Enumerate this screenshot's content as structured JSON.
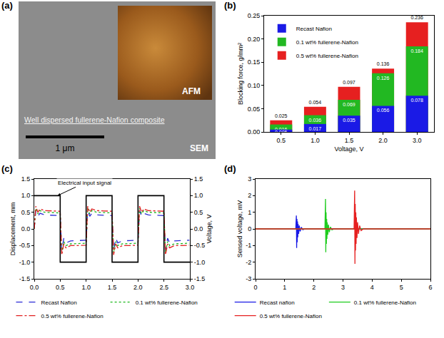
{
  "chart_data": [
    {
      "type": "image",
      "panel": "(a)",
      "annotations": [
        "AFM",
        "Well dispersed fullerene-Nafion composite",
        "1 μm",
        "SEM"
      ]
    },
    {
      "type": "bar",
      "panel": "(b)",
      "x_label": "Voltage, V",
      "y_label": "Blocking force, g/mm²",
      "categories": [
        "0.5",
        "1.0",
        "1.5",
        "2.0",
        "3.0"
      ],
      "series": [
        {
          "name": "Recast Nafion",
          "color": "#1a1ae6",
          "values": [
            0.005,
            0.017,
            0.035,
            0.056,
            0.078
          ]
        },
        {
          "name": "0.1 wt% fullerene-Nafion",
          "color": "#22b822",
          "values": [
            0.016,
            0.036,
            0.069,
            0.126,
            0.184
          ]
        },
        {
          "name": "0.5 wt% fullerene-Nafion",
          "color": "#e62020",
          "values": [
            0.025,
            0.054,
            0.097,
            0.136,
            0.236
          ]
        }
      ],
      "ylim": [
        0,
        0.25
      ],
      "yticks": [
        {
          "value": 0,
          "label": "0.00"
        },
        {
          "value": 0.05,
          "label": "0.05"
        },
        {
          "value": 0.1,
          "label": "0.10"
        },
        {
          "value": 0.15,
          "label": "0.15"
        },
        {
          "value": 0.2,
          "label": "0.20"
        },
        {
          "value": 0.25,
          "label": "0.25"
        }
      ],
      "data_labels": true,
      "legend": "top left",
      "grid": false
    },
    {
      "type": "line",
      "panel": "(c)",
      "y_label": "Displacement, mm",
      "y2_label": "Voltage, V",
      "annotations": [
        "Electrical input signal"
      ],
      "xlim": [
        0,
        3
      ],
      "xticks": [
        {
          "value": 0,
          "label": "0.0"
        },
        {
          "value": 0.5,
          "label": "0.5"
        },
        {
          "value": 1,
          "label": "1.0"
        },
        {
          "value": 1.5,
          "label": "1.5"
        },
        {
          "value": 2,
          "label": "2.0"
        },
        {
          "value": 2.5,
          "label": "2.5"
        },
        {
          "value": 3,
          "label": "3.0"
        }
      ],
      "ylim": [
        -1.5,
        1.5
      ],
      "yticks": [
        {
          "value": -1.5,
          "label": "-1.5"
        },
        {
          "value": -1,
          "label": "-1.0"
        },
        {
          "value": -0.5,
          "label": "-0.5"
        },
        {
          "value": 0,
          "label": "0.0"
        },
        {
          "value": 0.5,
          "label": "0.5"
        },
        {
          "value": 1,
          "label": "1.0"
        },
        {
          "value": 1.5,
          "label": "1.5"
        }
      ],
      "y2lim": [
        -1.5,
        1.5
      ],
      "y2ticks": [
        {
          "value": -1.5,
          "label": "-1.5"
        },
        {
          "value": -1,
          "label": "-1.0"
        },
        {
          "value": -0.5,
          "label": "-0.5"
        },
        {
          "value": 0,
          "label": "0.0"
        },
        {
          "value": 0.5,
          "label": "0.5"
        },
        {
          "value": 1,
          "label": "1.0"
        },
        {
          "value": 1.5,
          "label": "1.5"
        }
      ],
      "legend": "bottom",
      "grid": false,
      "series": [
        {
          "color": "#000000",
          "axis": "y2",
          "line_style": "solid",
          "x": [
            0,
            0.5,
            0.5,
            1,
            1,
            1.5,
            1.5,
            2,
            2,
            2.5,
            2.5,
            3
          ],
          "values": [
            1,
            1,
            -1,
            -1,
            1,
            1,
            -1,
            -1,
            1,
            1,
            -1,
            -1
          ]
        },
        {
          "name": "Recast Nafion",
          "color": "#2b2bd6",
          "line_style": "dash",
          "x": [
            0,
            0.03,
            0.07,
            0.11,
            0.2,
            0.35,
            0.49,
            0.5,
            0.53,
            0.57,
            0.61,
            0.7,
            0.85,
            0.99,
            1.0,
            1.03,
            1.07,
            1.11,
            1.2,
            1.35,
            1.49,
            1.5,
            1.53,
            1.57,
            1.61,
            1.7,
            1.85,
            1.99,
            2.0,
            2.03,
            2.07,
            2.11,
            2.2,
            2.35,
            2.49,
            2.5,
            2.53,
            2.57,
            2.61,
            2.7,
            2.85,
            2.99
          ],
          "values": [
            0,
            0.55,
            0.38,
            0.47,
            0.42,
            0.41,
            0.4,
            0.4,
            -0.65,
            -0.28,
            -0.42,
            -0.36,
            -0.35,
            -0.34,
            -0.34,
            0.55,
            0.38,
            0.47,
            0.42,
            0.41,
            0.4,
            0.4,
            -0.65,
            -0.28,
            -0.42,
            -0.36,
            -0.35,
            -0.34,
            -0.34,
            0.55,
            0.38,
            0.47,
            0.42,
            0.41,
            0.4,
            0.4,
            -0.65,
            -0.28,
            -0.42,
            -0.36,
            -0.35,
            -0.34
          ]
        },
        {
          "name": "0.1 wt% fullerene-Nafion",
          "color": "#1fb81f",
          "line_style": "dot",
          "x": [
            0,
            0.03,
            0.07,
            0.11,
            0.2,
            0.35,
            0.49,
            0.5,
            0.53,
            0.57,
            0.61,
            0.7,
            0.85,
            0.99,
            1.0,
            1.03,
            1.07,
            1.11,
            1.2,
            1.35,
            1.49,
            1.5,
            1.53,
            1.57,
            1.61,
            1.7,
            1.85,
            1.99,
            2.0,
            2.03,
            2.07,
            2.11,
            2.2,
            2.35,
            2.49,
            2.5,
            2.53,
            2.57,
            2.61,
            2.7,
            2.85,
            2.99
          ],
          "values": [
            0,
            0.62,
            0.45,
            0.55,
            0.5,
            0.49,
            0.48,
            0.48,
            -0.72,
            -0.38,
            -0.5,
            -0.45,
            -0.44,
            -0.43,
            -0.43,
            0.62,
            0.45,
            0.55,
            0.5,
            0.49,
            0.48,
            0.48,
            -0.72,
            -0.38,
            -0.5,
            -0.45,
            -0.44,
            -0.43,
            -0.43,
            0.62,
            0.45,
            0.55,
            0.5,
            0.49,
            0.48,
            0.48,
            -0.72,
            -0.38,
            -0.5,
            -0.45,
            -0.44,
            -0.43
          ]
        },
        {
          "name": "0.5 wt% fullerene-Nafion",
          "color": "#e02020",
          "line_style": "dashdot",
          "x": [
            0,
            0.03,
            0.07,
            0.11,
            0.2,
            0.35,
            0.49,
            0.5,
            0.53,
            0.57,
            0.61,
            0.7,
            0.85,
            0.99,
            1.0,
            1.03,
            1.07,
            1.11,
            1.2,
            1.35,
            1.49,
            1.5,
            1.53,
            1.57,
            1.61,
            1.7,
            1.85,
            1.99,
            2.0,
            2.03,
            2.07,
            2.11,
            2.2,
            2.35,
            2.49,
            2.5,
            2.53,
            2.57,
            2.61,
            2.7,
            2.85,
            2.99
          ],
          "values": [
            0,
            0.68,
            0.5,
            0.6,
            0.55,
            0.54,
            0.53,
            0.53,
            -0.78,
            -0.45,
            -0.57,
            -0.5,
            -0.5,
            -0.49,
            -0.49,
            0.68,
            0.5,
            0.6,
            0.55,
            0.54,
            0.53,
            0.53,
            -0.78,
            -0.45,
            -0.57,
            -0.5,
            -0.5,
            -0.49,
            -0.49,
            0.68,
            0.5,
            0.6,
            0.55,
            0.54,
            0.53,
            0.53,
            -0.78,
            -0.45,
            -0.57,
            -0.5,
            -0.5,
            -0.49
          ]
        }
      ]
    },
    {
      "type": "line",
      "panel": "(d)",
      "y_label": "Sensed voltage, mV",
      "xlim": [
        0,
        6
      ],
      "xticks": [
        0,
        1,
        2,
        3,
        4,
        5,
        6
      ],
      "ylim": [
        -3,
        3
      ],
      "yticks": [
        -3,
        -2,
        -1,
        0,
        1,
        2,
        3
      ],
      "legend": "bottom",
      "grid": false,
      "series": [
        {
          "name": "Recast nafion",
          "color": "#1a1ae6",
          "line_style": "solid",
          "x": [
            0,
            1.38,
            1.4,
            1.41,
            1.42,
            1.43,
            1.44,
            1.45,
            1.46,
            1.48,
            1.5,
            1.53,
            1.57,
            1.62,
            1.7,
            6
          ],
          "values": [
            0,
            0,
            0.8,
            -1.15,
            0.6,
            -0.8,
            0.45,
            -0.5,
            0.3,
            -0.3,
            0.2,
            -0.15,
            0.1,
            -0.05,
            0,
            0
          ]
        },
        {
          "name": "0.1 wt% fullerene-Nafion",
          "color": "#1fcc1f",
          "line_style": "solid",
          "x": [
            0,
            2.38,
            2.4,
            2.41,
            2.42,
            2.43,
            2.44,
            2.45,
            2.46,
            2.48,
            2.5,
            2.53,
            2.57,
            2.62,
            2.7,
            6
          ],
          "values": [
            0,
            0,
            1.8,
            -1.4,
            1.0,
            -0.9,
            0.6,
            -0.6,
            0.4,
            -0.35,
            0.25,
            -0.2,
            0.12,
            -0.06,
            0,
            0
          ]
        },
        {
          "name": "0.5 wt% fullerene-Nafion",
          "color": "#e62020",
          "line_style": "solid",
          "x": [
            0,
            3.38,
            3.4,
            3.41,
            3.42,
            3.43,
            3.44,
            3.45,
            3.46,
            3.48,
            3.5,
            3.53,
            3.57,
            3.62,
            3.7,
            6
          ],
          "values": [
            0,
            0,
            2.3,
            -2.1,
            1.5,
            -1.3,
            1.0,
            -0.9,
            0.7,
            -0.55,
            0.4,
            -0.3,
            0.2,
            -0.1,
            0,
            0
          ]
        }
      ]
    }
  ]
}
